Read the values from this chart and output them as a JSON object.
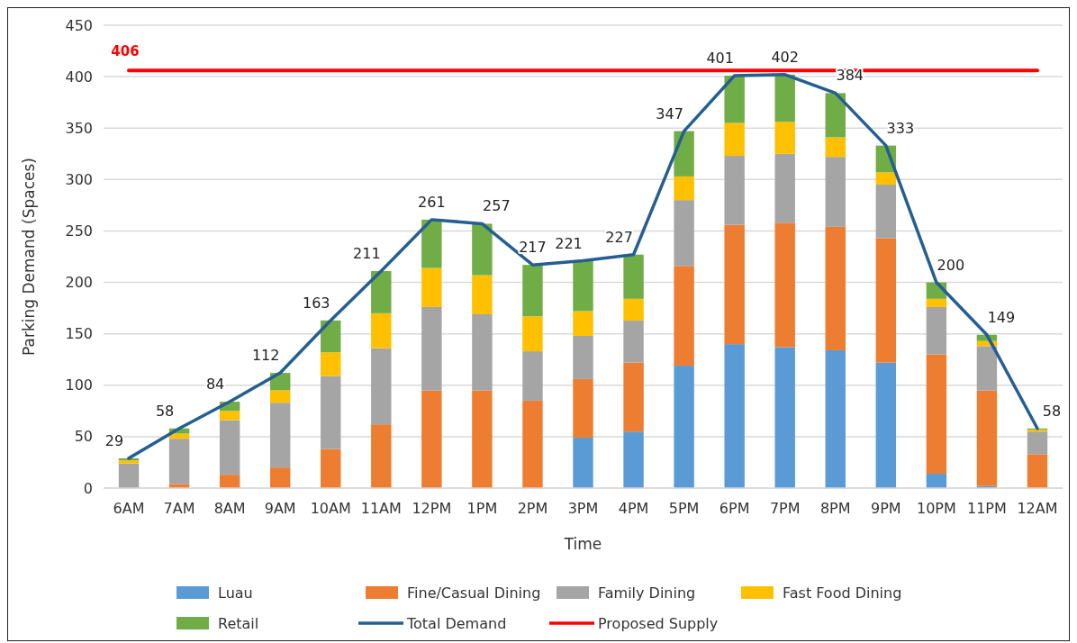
{
  "chart_data": {
    "type": "bar",
    "stacked": true,
    "xlabel": "Time",
    "ylabel": "Parking Demand (Spaces)",
    "categories": [
      "6AM",
      "7AM",
      "8AM",
      "9AM",
      "10AM",
      "11AM",
      "12PM",
      "1PM",
      "2PM",
      "3PM",
      "4PM",
      "5PM",
      "6PM",
      "7PM",
      "8PM",
      "9PM",
      "10PM",
      "11PM",
      "12AM"
    ],
    "ylim": [
      0,
      450
    ],
    "yticks": [
      0,
      50,
      100,
      150,
      200,
      250,
      300,
      350,
      400,
      450
    ],
    "grid": "y",
    "legend": "bottom",
    "series": [
      {
        "name": "Luau",
        "color": "#5b9bd5",
        "values": [
          0,
          0,
          0,
          0,
          0,
          0,
          0,
          0,
          0,
          49,
          55,
          119,
          140,
          137,
          134,
          122,
          14,
          2,
          0
        ]
      },
      {
        "name": "Fine/Casual Dining",
        "color": "#ed7d31",
        "values": [
          0,
          4,
          13,
          20,
          38,
          62,
          95,
          95,
          85,
          57,
          67,
          97,
          116,
          121,
          120,
          121,
          116,
          93,
          33
        ]
      },
      {
        "name": "Family Dining",
        "color": "#a5a5a5",
        "values": [
          24,
          44,
          53,
          63,
          71,
          74,
          81,
          74,
          48,
          42,
          41,
          64,
          67,
          67,
          68,
          52,
          46,
          43,
          22
        ]
      },
      {
        "name": "Fast Food Dining",
        "color": "#ffc000",
        "values": [
          3,
          5,
          9,
          12,
          23,
          34,
          38,
          38,
          34,
          24,
          21,
          23,
          32,
          31,
          19,
          12,
          8,
          5,
          2
        ]
      },
      {
        "name": "Retail",
        "color": "#70ad47",
        "values": [
          2,
          5,
          9,
          17,
          31,
          41,
          47,
          50,
          50,
          49,
          43,
          44,
          46,
          46,
          43,
          26,
          16,
          6,
          1
        ]
      },
      {
        "name": "Total Demand",
        "type": "line",
        "color": "#255e91",
        "values": [
          29,
          58,
          84,
          112,
          163,
          211,
          261,
          257,
          217,
          221,
          227,
          347,
          401,
          402,
          384,
          333,
          200,
          149,
          58
        ],
        "value_labels": [
          "29",
          "58",
          "84",
          "112",
          "163",
          "211",
          "261",
          "257",
          "217",
          "221",
          "227",
          "347",
          "401",
          "402",
          "384",
          "333",
          "200",
          "149",
          "58"
        ]
      },
      {
        "name": "Proposed Supply",
        "type": "line",
        "color": "#ff0000",
        "values": [
          406,
          406,
          406,
          406,
          406,
          406,
          406,
          406,
          406,
          406,
          406,
          406,
          406,
          406,
          406,
          406,
          406,
          406,
          406
        ],
        "value_labels": [
          "406",
          null,
          null,
          null,
          null,
          null,
          null,
          null,
          null,
          null,
          null,
          null,
          null,
          null,
          null,
          null,
          null,
          null,
          null
        ]
      }
    ]
  }
}
